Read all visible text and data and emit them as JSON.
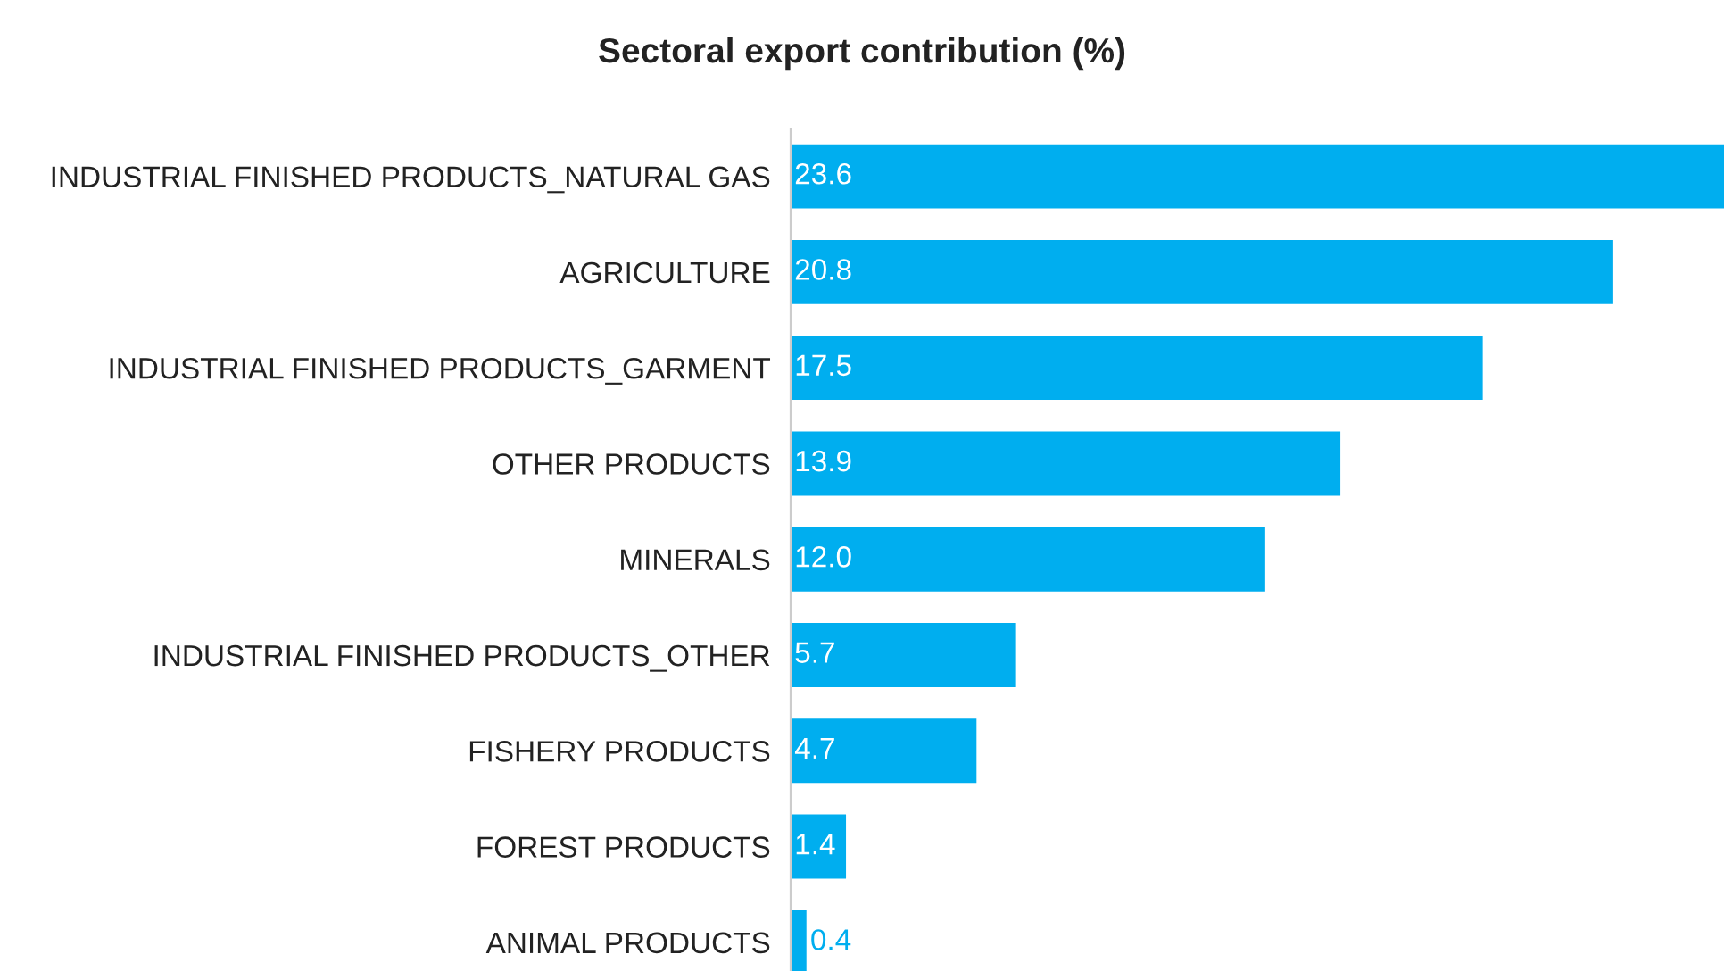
{
  "chart_data": {
    "type": "bar",
    "orientation": "horizontal",
    "title": "Sectoral export contribution (%)",
    "categories": [
      "INDUSTRIAL FINISHED PRODUCTS_NATURAL GAS",
      "AGRICULTURE",
      "INDUSTRIAL FINISHED PRODUCTS_GARMENT",
      "OTHER PRODUCTS",
      "MINERALS",
      "INDUSTRIAL FINISHED PRODUCTS_OTHER",
      "FISHERY PRODUCTS",
      "FOREST PRODUCTS",
      "ANIMAL PRODUCTS"
    ],
    "values": [
      23.6,
      20.8,
      17.5,
      13.9,
      12.0,
      5.7,
      4.7,
      1.4,
      0.4
    ],
    "value_labels": [
      "23.6",
      "20.8",
      "17.5",
      "13.9",
      "12.0",
      "5.7",
      "4.7",
      "1.4",
      "0.4"
    ],
    "color": "#00aeef",
    "grid": false,
    "legend": false
  }
}
